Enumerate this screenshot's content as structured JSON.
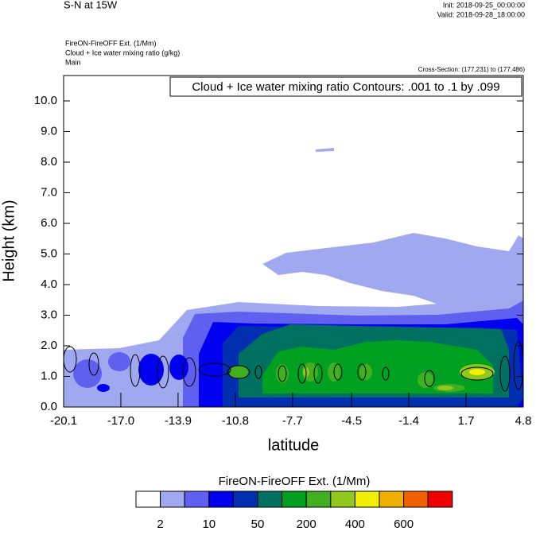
{
  "chart_data": {
    "type": "contour",
    "title": "S-N at 15W",
    "init": "Init: 2018-09-25_00:00:00",
    "valid": "Valid: 2018-09-28_18:00:00",
    "field_label": "FireON-FireOFF Ext.   (1/Mm)",
    "contour_label": "Cloud + Ice water mixing ratio   (g/kg)",
    "run": "Main",
    "cross_section": "Cross-Section: (177,231) to (177,486)",
    "annotation": "Cloud + Ice water mixing ratio Contours: .001 to .1 by .099",
    "xlabel": "latitude",
    "ylabel": "Height (km)",
    "xlim": [
      -20.1,
      4.8
    ],
    "xticks": [
      {
        "value": -20.1,
        "label": "-20.1"
      },
      {
        "value": -17.0,
        "label": "-17.0"
      },
      {
        "value": -13.9,
        "label": "-13.9"
      },
      {
        "value": -10.8,
        "label": "-10.8"
      },
      {
        "value": -7.7,
        "label": "-7.7"
      },
      {
        "value": -4.5,
        "label": "-4.5"
      },
      {
        "value": -1.4,
        "label": "-1.4"
      },
      {
        "value": 1.7,
        "label": "1.7"
      },
      {
        "value": 4.8,
        "label": "4.8"
      }
    ],
    "ylim": [
      0,
      10.83
    ],
    "yticks": [
      {
        "value": 0,
        "label": "0.0"
      },
      {
        "value": 1,
        "label": "1.0"
      },
      {
        "value": 2,
        "label": "2.0"
      },
      {
        "value": 3,
        "label": "3.0"
      },
      {
        "value": 4,
        "label": "4.0"
      },
      {
        "value": 5,
        "label": "5.0"
      },
      {
        "value": 6,
        "label": "6.0"
      },
      {
        "value": 7,
        "label": "7.0"
      },
      {
        "value": 8,
        "label": "8.0"
      },
      {
        "value": 9,
        "label": "9.0"
      },
      {
        "value": 10,
        "label": "10.0"
      }
    ],
    "colorbar": {
      "title": "FireON-FireOFF Ext.  (1/Mm)",
      "colors": [
        "#ffffff",
        "#a0a8f0",
        "#6060f0",
        "#0000f0",
        "#0030b0",
        "#007060",
        "#00a020",
        "#40b020",
        "#90c820",
        "#f0f000",
        "#f0b000",
        "#f06000",
        "#f00000"
      ],
      "labels": [
        2,
        10,
        50,
        200,
        400,
        600
      ]
    }
  }
}
